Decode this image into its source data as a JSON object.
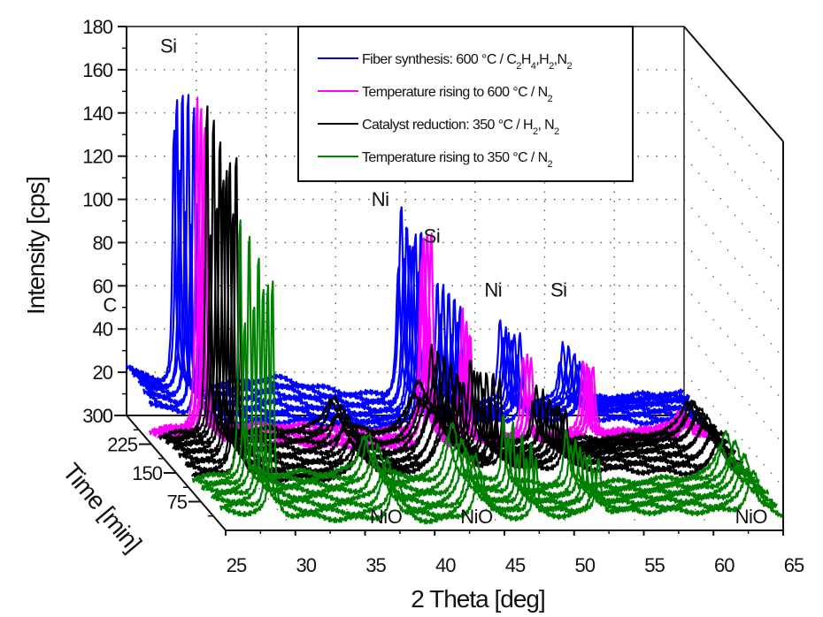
{
  "chart_data": {
    "type": "line",
    "subtype": "3d-waterfall",
    "title": "",
    "xlabel": "2 Theta [deg]",
    "ylabel": "Intensity [cps]",
    "zlabel": "Time [min]",
    "xlim": [
      25,
      65
    ],
    "ylim": [
      0,
      180
    ],
    "zlim": [
      0,
      300
    ],
    "x_ticks": [
      25,
      30,
      35,
      40,
      45,
      50,
      55,
      60,
      65
    ],
    "y_ticks": [
      0,
      20,
      40,
      60,
      80,
      100,
      120,
      140,
      160,
      180
    ],
    "z_ticks": [
      75,
      150,
      225,
      300
    ],
    "grid": true,
    "legend_position": "top-center",
    "series": [
      {
        "name": "Fiber synthesis: 600 °C / C2H4,H2,N2",
        "legend_parts": [
          [
            "Fiber synthesis: 600 °C / C",
            ""
          ],
          [
            "2",
            "sub"
          ],
          [
            "H",
            ""
          ],
          [
            "4",
            "sub"
          ],
          [
            ",H",
            ""
          ],
          [
            "2",
            "sub"
          ],
          [
            ",N",
            ""
          ],
          [
            "2",
            "sub"
          ]
        ],
        "color": "#0000ff",
        "time_range": [
          230,
          300
        ],
        "traces": 9,
        "baseline": 8,
        "peaks": [
          {
            "x": 23.5,
            "height": 22,
            "width": 2.2,
            "label": "C"
          },
          {
            "x": 28.4,
            "height": 150,
            "width": 0.12
          },
          {
            "x": 44.5,
            "height": 95,
            "width": 0.18
          },
          {
            "x": 47.3,
            "height": 60,
            "width": 0.15
          },
          {
            "x": 51.8,
            "height": 40,
            "width": 0.18
          },
          {
            "x": 56.1,
            "height": 28,
            "width": 0.2
          },
          {
            "x": 35.5,
            "height": 6,
            "width": 3
          }
        ]
      },
      {
        "name": "Temperature rising to 600 °C / N2",
        "legend_parts": [
          [
            "Temperature rising to 600 °C / N",
            ""
          ],
          [
            "2",
            "sub"
          ]
        ],
        "color": "#ff00ff",
        "time_range": [
          200,
          230
        ],
        "traces": 6,
        "baseline": 5,
        "peaks": [
          {
            "x": 28.4,
            "height": 162,
            "width": 0.12
          },
          {
            "x": 44.5,
            "height": 100,
            "width": 0.18
          },
          {
            "x": 47.3,
            "height": 62,
            "width": 0.15
          },
          {
            "x": 51.8,
            "height": 38,
            "width": 0.18
          },
          {
            "x": 56.1,
            "height": 36,
            "width": 0.2
          },
          {
            "x": 62.9,
            "height": 8,
            "width": 0.5
          }
        ]
      },
      {
        "name": "Catalyst reduction: 350 °C / H2, N2",
        "legend_parts": [
          [
            "Catalyst reduction: 350 °C / H",
            ""
          ],
          [
            "2",
            "sub"
          ],
          [
            ", N",
            ""
          ],
          [
            "2",
            "sub"
          ]
        ],
        "color": "#000000",
        "time_range": [
          100,
          200
        ],
        "traces": 11,
        "baseline": 8,
        "peaks": [
          {
            "x": 28.4,
            "height": 160,
            "width": 0.12
          },
          {
            "x": 37.3,
            "height": 18,
            "width": 0.6
          },
          {
            "x": 43.3,
            "height": 28,
            "width": 0.8
          },
          {
            "x": 44.5,
            "height": 40,
            "width": 0.2
          },
          {
            "x": 47.3,
            "height": 40,
            "width": 0.18
          },
          {
            "x": 51.8,
            "height": 28,
            "width": 0.2
          },
          {
            "x": 62.9,
            "height": 18,
            "width": 0.6
          }
        ]
      },
      {
        "name": "Temperature rising to 350 °C / N2",
        "legend_parts": [
          [
            "Temperature rising to 350 °C / N",
            ""
          ],
          [
            "2",
            "sub"
          ]
        ],
        "color": "#008000",
        "time_range": [
          0,
          100
        ],
        "traces": 8,
        "baseline": 6,
        "peaks": [
          {
            "x": 28.4,
            "height": 125,
            "width": 0.12
          },
          {
            "x": 37.3,
            "height": 22,
            "width": 0.45,
            "label": "NiO"
          },
          {
            "x": 43.3,
            "height": 30,
            "width": 0.5,
            "label": "NiO"
          },
          {
            "x": 47.3,
            "height": 35,
            "width": 0.15
          },
          {
            "x": 51.8,
            "height": 26,
            "width": 0.2
          },
          {
            "x": 62.9,
            "height": 22,
            "width": 0.5,
            "label": "NiO"
          }
        ]
      }
    ],
    "annotations": [
      {
        "text": "C",
        "x": 23.8,
        "y": 48
      },
      {
        "text": "Si",
        "x": 28.0,
        "y": 168
      },
      {
        "text": "Ni",
        "x": 43.2,
        "y": 97
      },
      {
        "text": "Si",
        "x": 46.9,
        "y": 80
      },
      {
        "text": "Ni",
        "x": 51.3,
        "y": 55
      },
      {
        "text": "Si",
        "x": 56.0,
        "y": 55
      },
      {
        "text": "NiO",
        "x": 36.5,
        "y": 0,
        "front": true
      },
      {
        "text": "NiO",
        "x": 43.0,
        "y": 0,
        "front": true
      },
      {
        "text": "NiO",
        "x": 62.7,
        "y": 0,
        "front": true
      }
    ]
  }
}
